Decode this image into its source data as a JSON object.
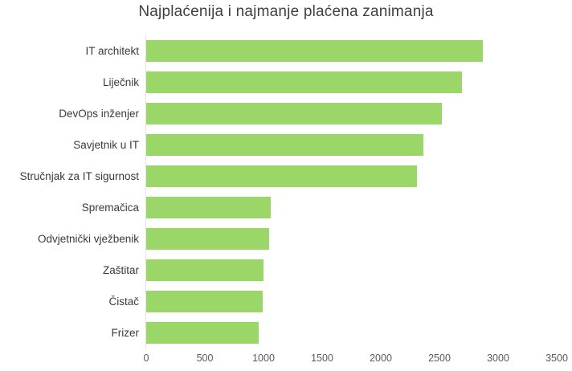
{
  "chart_data": {
    "type": "bar",
    "orientation": "horizontal",
    "title": "Najplaćenija i najmanje plaćena zanimanja",
    "categories": [
      "IT architekt",
      "Liječnik",
      "DevOps inženjer",
      "Savjetnik u IT",
      "Stručnjak za IT sigurnost",
      "Spremačica",
      "Odvjetnički vježbenik",
      "Zaštitar",
      "Čistač",
      "Frizer"
    ],
    "values": [
      2870,
      2690,
      2520,
      2360,
      2310,
      1060,
      1050,
      1000,
      990,
      960
    ],
    "xlabel": "",
    "ylabel": "",
    "xlim": [
      0,
      3500
    ],
    "x_ticks": [
      0,
      500,
      1000,
      1500,
      2000,
      2500,
      3000,
      3500
    ],
    "grid": false,
    "legend": "none",
    "colors": {
      "bar": "#9BD768",
      "title_text": "#3F3F3F",
      "category_text": "#3A3A3A",
      "tick_text": "#595959",
      "axis_line": "#E2E2E2",
      "background": "#FFFFFF"
    }
  }
}
